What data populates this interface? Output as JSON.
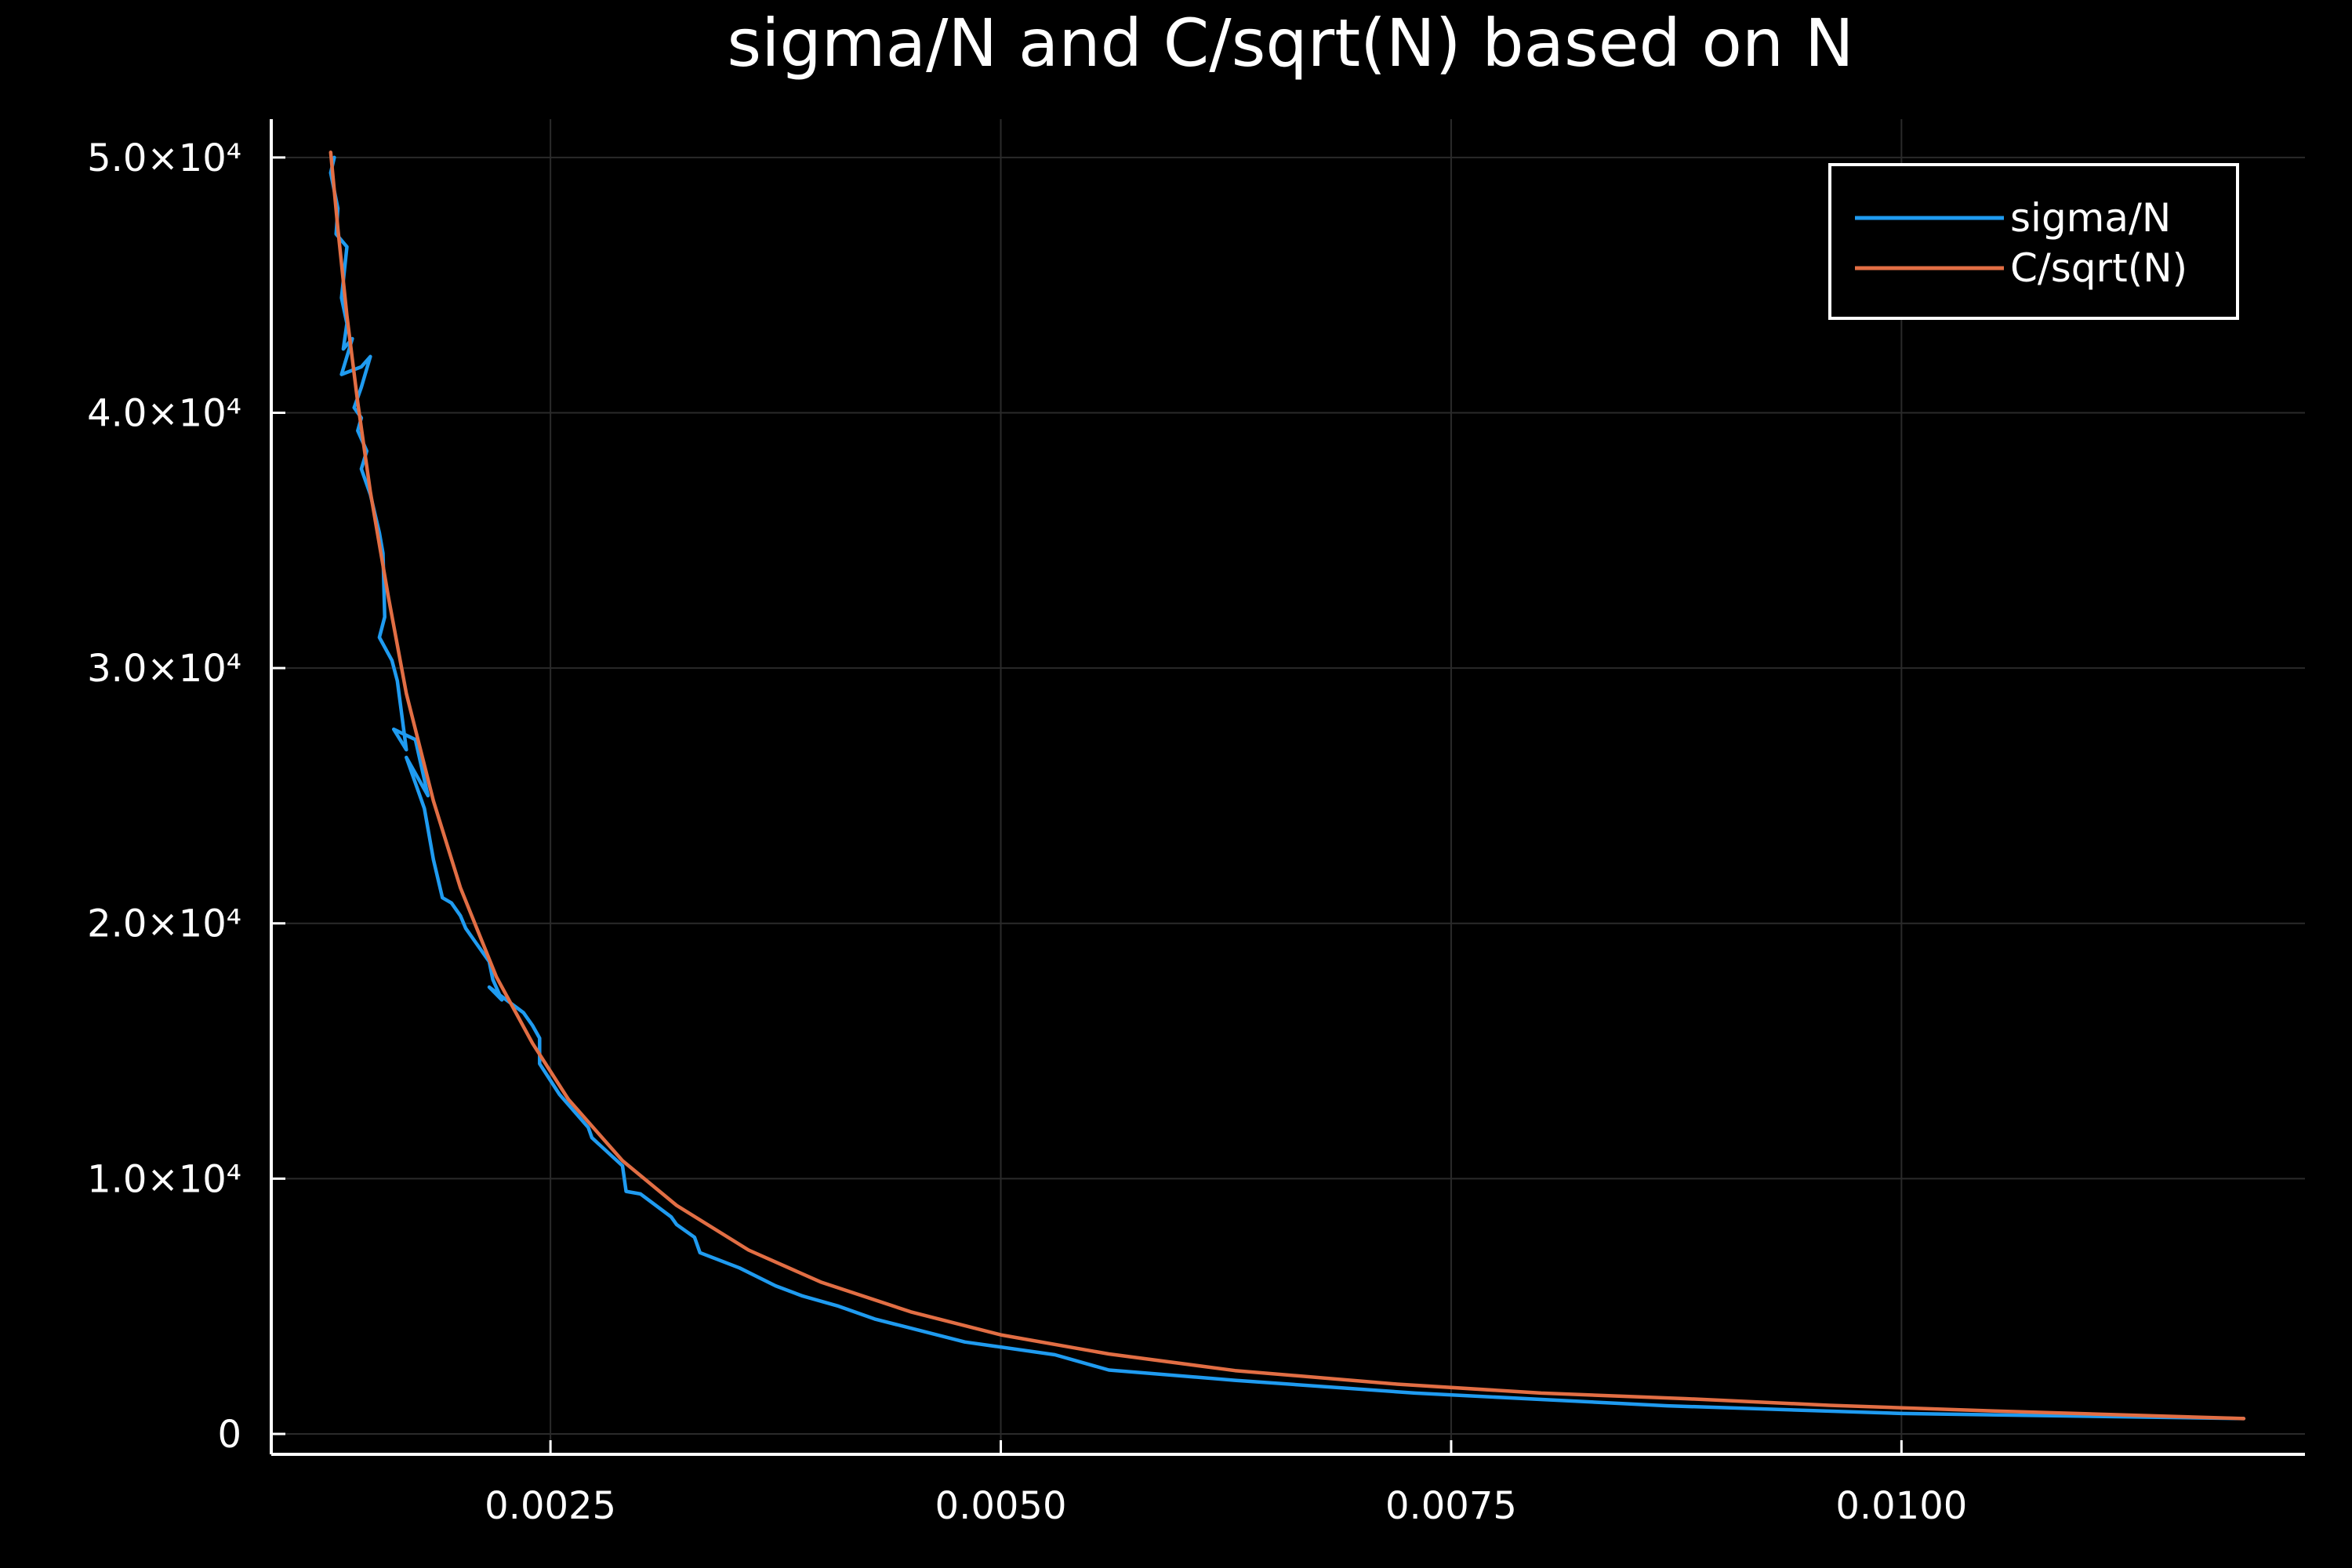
{
  "chart_data": {
    "type": "line",
    "title": "sigma/N and C/sqrt(N) based on N",
    "xlabel": "",
    "ylabel": "",
    "xlim": [
      0.00095,
      0.01224
    ],
    "ylim": [
      -800,
      51500
    ],
    "x_ticks": [
      {
        "value": 0.0025,
        "label": "0.0025"
      },
      {
        "value": 0.005,
        "label": "0.0050"
      },
      {
        "value": 0.0075,
        "label": "0.0075"
      },
      {
        "value": 0.01,
        "label": "0.0100"
      }
    ],
    "y_ticks": [
      {
        "value": 0,
        "label": "0"
      },
      {
        "value": 10000,
        "label": "1.0×10⁴"
      },
      {
        "value": 20000,
        "label": "2.0×10⁴"
      },
      {
        "value": 30000,
        "label": "3.0×10⁴"
      },
      {
        "value": 40000,
        "label": "4.0×10⁴"
      },
      {
        "value": 50000,
        "label": "5.0×10⁴"
      }
    ],
    "grid": true,
    "legend_position": "top-right",
    "series": [
      {
        "name": "sigma/N",
        "color": "#1f9bf0",
        "x": [
          0.0013,
          0.00128,
          0.00132,
          0.00131,
          0.00137,
          0.00134,
          0.00137,
          0.00135,
          0.0014,
          0.00134,
          0.00145,
          0.0015,
          0.00145,
          0.00141,
          0.00145,
          0.00143,
          0.00148,
          0.00145,
          0.0015,
          0.00155,
          0.00157,
          0.00158,
          0.00155,
          0.00162,
          0.00165,
          0.0017,
          0.00163,
          0.00175,
          0.00182,
          0.0017,
          0.0018,
          0.00185,
          0.0019,
          0.00195,
          0.002,
          0.00203,
          0.00208,
          0.00216,
          0.00218,
          0.00223,
          0.00216,
          0.00235,
          0.0024,
          0.00244,
          0.00244,
          0.00255,
          0.00271,
          0.00273,
          0.0029,
          0.00292,
          0.003,
          0.00317,
          0.0032,
          0.0033,
          0.00333,
          0.00355,
          0.00375,
          0.0039,
          0.0041,
          0.0043,
          0.0048,
          0.0053,
          0.0056,
          0.0063,
          0.0073,
          0.0087,
          0.01,
          0.0119
        ],
        "y": [
          50000,
          49400,
          48000,
          47000,
          46500,
          44500,
          43500,
          42500,
          42900,
          41500,
          41800,
          42200,
          41000,
          40200,
          39800,
          39300,
          38500,
          37800,
          36800,
          35300,
          34500,
          32000,
          31200,
          30300,
          29500,
          26800,
          27600,
          27200,
          25000,
          26500,
          24500,
          22500,
          21000,
          20800,
          20300,
          19800,
          19300,
          18500,
          17800,
          17000,
          17500,
          16500,
          16000,
          15500,
          14500,
          13300,
          12000,
          11600,
          10500,
          9500,
          9400,
          8500,
          8200,
          7700,
          7100,
          6500,
          5800,
          5400,
          5000,
          4500,
          3600,
          3100,
          2500,
          2100,
          1600,
          1100,
          800,
          600
        ]
      },
      {
        "name": "C/sqrt(N)",
        "color": "#e26e44",
        "x": [
          0.00128,
          0.00132,
          0.00137,
          0.00143,
          0.0015,
          0.0016,
          0.0017,
          0.00185,
          0.002,
          0.0022,
          0.0024,
          0.0026,
          0.0029,
          0.0032,
          0.0036,
          0.004,
          0.0045,
          0.005,
          0.0056,
          0.0063,
          0.0072,
          0.008,
          0.0088,
          0.0096,
          0.0105,
          0.0119
        ],
        "y": [
          50200,
          47200,
          43800,
          40400,
          36900,
          32800,
          29000,
          24800,
          21400,
          17900,
          15300,
          13100,
          10700,
          8950,
          7200,
          5950,
          4780,
          3880,
          3130,
          2480,
          1950,
          1600,
          1380,
          1120,
          900,
          600
        ]
      }
    ]
  }
}
